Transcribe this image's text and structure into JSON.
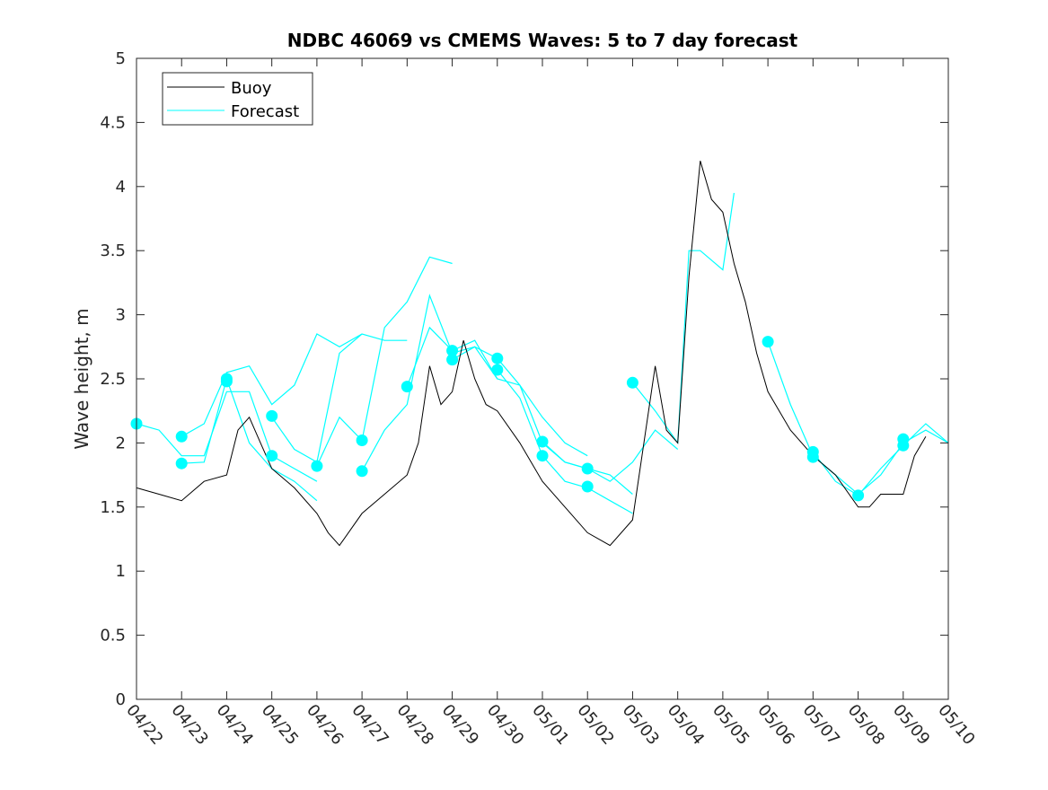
{
  "chart_data": {
    "type": "line",
    "title": "NDBC 46069 vs CMEMS Waves: 5 to 7 day forecast",
    "xlabel": "",
    "ylabel": "Wave height, m",
    "xlim": [
      "04/22",
      "05/10"
    ],
    "ylim": [
      0,
      5
    ],
    "yticks": [
      "0",
      "0.5",
      "1",
      "1.5",
      "2",
      "2.5",
      "3",
      "3.5",
      "4",
      "4.5",
      "5"
    ],
    "xticks": [
      "04/22",
      "04/23",
      "04/24",
      "04/25",
      "04/26",
      "04/27",
      "04/28",
      "04/29",
      "04/30",
      "05/01",
      "05/02",
      "05/03",
      "05/04",
      "05/05",
      "05/06",
      "05/07",
      "05/08",
      "05/09",
      "05/10"
    ],
    "grid": false,
    "legend": {
      "placement": "top-left",
      "entries": [
        "Buoy",
        "Forecast"
      ]
    },
    "colors": {
      "buoy": "#000000",
      "forecast": "#00ffff",
      "axes": "#262626"
    },
    "series": [
      {
        "name": "Buoy",
        "x": [
          "04/22 00:00",
          "04/22 12:00",
          "04/23 00:00",
          "04/23 12:00",
          "04/24 00:00",
          "04/24 06:00",
          "04/24 12:00",
          "04/24 18:00",
          "04/25 00:00",
          "04/25 12:00",
          "04/26 00:00",
          "04/26 06:00",
          "04/26 12:00",
          "04/27 00:00",
          "04/27 12:00",
          "04/28 00:00",
          "04/28 06:00",
          "04/28 12:00",
          "04/28 18:00",
          "04/29 00:00",
          "04/29 06:00",
          "04/29 12:00",
          "04/29 18:00",
          "04/30 00:00",
          "04/30 12:00",
          "05/01 00:00",
          "05/01 12:00",
          "05/02 00:00",
          "05/02 12:00",
          "05/03 00:00",
          "05/03 06:00",
          "05/03 12:00",
          "05/03 18:00",
          "05/04 00:00",
          "05/04 06:00",
          "05/04 12:00",
          "05/04 18:00",
          "05/05 00:00",
          "05/05 06:00",
          "05/05 12:00",
          "05/05 18:00",
          "05/06 00:00",
          "05/06 12:00",
          "05/07 00:00",
          "05/07 12:00",
          "05/08 00:00",
          "05/08 06:00",
          "05/08 12:00",
          "05/09 00:00",
          "05/09 06:00",
          "05/09 12:00"
        ],
        "values": [
          1.65,
          1.6,
          1.55,
          1.7,
          1.75,
          2.1,
          2.2,
          2.0,
          1.8,
          1.65,
          1.45,
          1.3,
          1.2,
          1.45,
          1.6,
          1.75,
          2.0,
          2.6,
          2.3,
          2.4,
          2.8,
          2.5,
          2.3,
          2.25,
          2.0,
          1.7,
          1.5,
          1.3,
          1.2,
          1.4,
          2.0,
          2.6,
          2.1,
          2.0,
          3.3,
          4.2,
          3.9,
          3.8,
          3.4,
          3.1,
          2.7,
          2.4,
          2.1,
          1.9,
          1.75,
          1.5,
          1.5,
          1.6,
          1.6,
          1.9,
          2.05
        ]
      },
      {
        "name": "Forecast",
        "runs": [
          {
            "x": [
              "04/22 00:00",
              "04/22 12:00",
              "04/23 00:00",
              "04/23 12:00",
              "04/24 00:00",
              "04/24 12:00",
              "04/25 00:00",
              "04/25 12:00",
              "04/26 00:00"
            ],
            "values": [
              2.15,
              2.1,
              1.9,
              1.9,
              2.4,
              2.4,
              1.9,
              1.8,
              1.7
            ]
          },
          {
            "x": [
              "04/23 00:00",
              "04/23 12:00",
              "04/24 00:00",
              "04/24 12:00",
              "04/25 00:00",
              "04/25 12:00",
              "04/26 00:00"
            ],
            "values": [
              1.84,
              1.85,
              2.5,
              2.0,
              1.8,
              1.7,
              1.55
            ]
          },
          {
            "x": [
              "04/23 00:00",
              "04/23 12:00",
              "04/24 00:00",
              "04/24 12:00",
              "04/25 00:00",
              "04/25 12:00",
              "04/26 00:00",
              "04/26 12:00",
              "04/27 00:00"
            ],
            "values": [
              2.05,
              2.15,
              2.55,
              2.6,
              2.3,
              2.45,
              2.85,
              2.75,
              2.85
            ]
          },
          {
            "x": [
              "04/25 00:00",
              "04/25 12:00",
              "04/26 00:00",
              "04/26 12:00",
              "04/27 00:00",
              "04/27 12:00",
              "04/28 00:00"
            ],
            "values": [
              2.2,
              1.95,
              1.85,
              2.7,
              2.85,
              2.8,
              2.8
            ]
          },
          {
            "x": [
              "04/26 00:00",
              "04/26 12:00",
              "04/27 00:00",
              "04/27 12:00",
              "04/28 00:00",
              "04/28 12:00",
              "04/29 00:00"
            ],
            "values": [
              1.82,
              2.2,
              2.02,
              2.9,
              3.1,
              3.45,
              3.4
            ]
          },
          {
            "x": [
              "04/27 00:00",
              "04/27 12:00",
              "04/28 00:00",
              "04/28 12:00",
              "04/29 00:00",
              "04/29 12:00",
              "04/30 00:00"
            ],
            "values": [
              1.78,
              2.1,
              2.3,
              3.15,
              2.7,
              2.75,
              2.5
            ]
          },
          {
            "x": [
              "04/28 00:00",
              "04/28 12:00",
              "04/29 00:00",
              "04/29 12:00",
              "04/30 00:00",
              "04/30 12:00",
              "05/01 00:00",
              "05/01 12:00",
              "05/02 00:00"
            ],
            "values": [
              2.44,
              2.9,
              2.72,
              2.8,
              2.5,
              2.45,
              2.2,
              2.0,
              1.9
            ]
          },
          {
            "x": [
              "04/29 00:00",
              "04/29 12:00",
              "04/30 00:00",
              "04/30 12:00",
              "05/01 00:00",
              "05/01 12:00",
              "05/02 00:00",
              "05/02 12:00",
              "05/03 00:00"
            ],
            "values": [
              2.65,
              2.75,
              2.66,
              2.45,
              2.0,
              1.85,
              1.8,
              1.75,
              1.6
            ]
          },
          {
            "x": [
              "04/30 00:00",
              "04/30 12:00",
              "05/01 00:00",
              "05/01 12:00",
              "05/02 00:00",
              "05/02 12:00",
              "05/03 00:00"
            ],
            "values": [
              2.57,
              2.35,
              1.9,
              1.7,
              1.65,
              1.55,
              1.45
            ]
          },
          {
            "x": [
              "05/01 00:00",
              "05/01 12:00",
              "05/02 00:00",
              "05/02 12:00",
              "05/03 00:00",
              "05/03 12:00",
              "05/04 00:00"
            ],
            "values": [
              2.01,
              1.85,
              1.8,
              1.7,
              1.85,
              2.1,
              1.95
            ]
          },
          {
            "x": [
              "05/03 00:00",
              "05/03 12:00",
              "05/04 00:00",
              "05/04 06:00",
              "05/04 12:00",
              "05/05 00:00",
              "05/05 06:00"
            ],
            "values": [
              2.47,
              2.25,
              2.0,
              3.5,
              3.5,
              3.35,
              3.95
            ]
          },
          {
            "x": [
              "05/06 00:00",
              "05/06 12:00",
              "05/07 00:00",
              "05/07 12:00",
              "05/08 00:00",
              "05/08 12:00",
              "05/09 00:00",
              "05/09 12:00",
              "05/10 00:00"
            ],
            "values": [
              2.79,
              2.3,
              1.9,
              1.75,
              1.6,
              1.75,
              2.0,
              2.1,
              2.0
            ]
          },
          {
            "x": [
              "05/07 00:00",
              "05/07 12:00",
              "05/08 00:00",
              "05/08 12:00",
              "05/09 00:00",
              "05/09 12:00",
              "05/10 00:00"
            ],
            "values": [
              1.93,
              1.7,
              1.59,
              1.8,
              1.98,
              2.15,
              2.0
            ]
          }
        ],
        "markers": {
          "x": [
            "04/22 00:00",
            "04/23 00:00",
            "04/23 00:00",
            "04/24 00:00",
            "04/24 00:00",
            "04/25 00:00",
            "04/25 00:00",
            "04/26 00:00",
            "04/27 00:00",
            "04/27 00:00",
            "04/28 00:00",
            "04/29 00:00",
            "04/29 00:00",
            "04/30 00:00",
            "04/30 00:00",
            "05/01 00:00",
            "05/01 00:00",
            "05/02 00:00",
            "05/02 00:00",
            "05/03 00:00",
            "05/06 00:00",
            "05/07 00:00",
            "05/07 00:00",
            "05/08 00:00",
            "05/09 00:00",
            "05/09 00:00"
          ],
          "values": [
            2.15,
            2.05,
            1.84,
            2.5,
            2.48,
            2.21,
            1.9,
            1.82,
            2.02,
            1.78,
            2.44,
            2.72,
            2.65,
            2.66,
            2.57,
            2.01,
            1.9,
            1.8,
            1.66,
            2.47,
            2.79,
            1.93,
            1.89,
            1.59,
            2.03,
            1.98
          ]
        }
      }
    ]
  }
}
